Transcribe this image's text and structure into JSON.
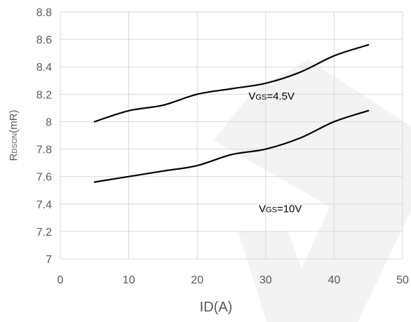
{
  "chart_data": {
    "type": "line",
    "title": "",
    "xlabel": "ID(A)",
    "ylabel": {
      "main": "R",
      "subscript": "DSON",
      "suffix": "(mR)"
    },
    "xlim": [
      0,
      50
    ],
    "ylim": [
      7,
      8.8
    ],
    "x_ticks": [
      "0",
      "10",
      "20",
      "30",
      "40",
      "50"
    ],
    "y_ticks": [
      "7",
      "7.2",
      "7.4",
      "7.6",
      "7.8",
      "8",
      "8.2",
      "8.4",
      "8.6",
      "8.8"
    ],
    "grid": true,
    "legend": "none",
    "line_color": "#000000",
    "series": [
      {
        "x": [
          5,
          10,
          15,
          20,
          25,
          30,
          35,
          40,
          45
        ],
        "y": [
          8.0,
          8.08,
          8.12,
          8.2,
          8.24,
          8.28,
          8.36,
          8.48,
          8.56
        ]
      },
      {
        "x": [
          5,
          10,
          15,
          20,
          25,
          30,
          35,
          40,
          45
        ],
        "y": [
          7.56,
          7.6,
          7.64,
          7.68,
          7.76,
          7.8,
          7.88,
          8.0,
          8.08
        ]
      }
    ],
    "annotations": [
      {
        "main": "V",
        "subscript": "GS",
        "suffix": "=4.5V",
        "series": 0
      },
      {
        "main": "V",
        "subscript": "GS",
        "suffix": "=10V",
        "series": 1
      }
    ]
  }
}
